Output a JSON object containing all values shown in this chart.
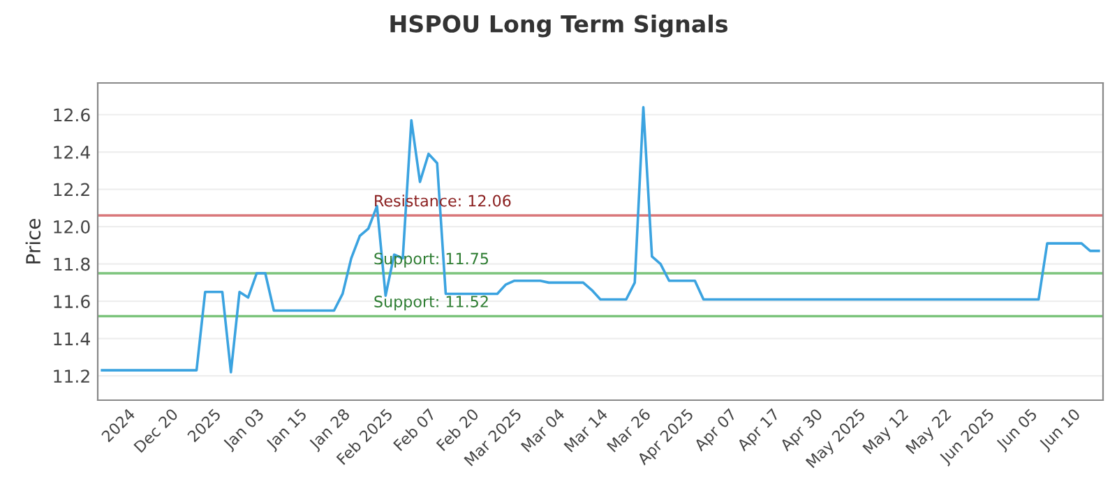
{
  "chart_data": {
    "type": "line",
    "title": "HSPOU Long Term Signals",
    "ylabel": "Price",
    "categories": [
      null,
      null,
      null,
      "2024",
      null,
      null,
      null,
      null,
      "Dec 20",
      null,
      null,
      null,
      null,
      "2025",
      null,
      null,
      null,
      null,
      "Jan 03",
      null,
      null,
      null,
      null,
      "Jan 15",
      null,
      null,
      null,
      null,
      "Jan 28",
      null,
      null,
      null,
      null,
      "Feb 2025",
      null,
      null,
      null,
      null,
      "Feb 07",
      null,
      null,
      null,
      null,
      "Feb 20",
      null,
      null,
      null,
      null,
      "Mar 2025",
      null,
      null,
      null,
      null,
      "Mar 04",
      null,
      null,
      null,
      null,
      "Mar 14",
      null,
      null,
      null,
      null,
      "Mar 26",
      null,
      null,
      null,
      null,
      "Apr 2025",
      null,
      null,
      null,
      null,
      "Apr 07",
      null,
      null,
      null,
      null,
      "Apr 17",
      null,
      null,
      null,
      null,
      "Apr 30",
      null,
      null,
      null,
      null,
      "May 2025",
      null,
      null,
      null,
      null,
      "May 12",
      null,
      null,
      null,
      null,
      "May 22",
      null,
      null,
      null,
      null,
      "Jun 2025",
      null,
      null,
      null,
      null,
      "Jun 05",
      null,
      null,
      null,
      null,
      "Jun 10",
      null,
      null,
      null
    ],
    "series": [
      {
        "color": "#3ba3e0",
        "values": [
          11.23,
          11.23,
          11.23,
          11.23,
          11.23,
          11.23,
          11.23,
          11.23,
          11.23,
          11.23,
          11.23,
          11.23,
          11.65,
          11.65,
          11.65,
          11.22,
          11.65,
          11.62,
          11.75,
          11.75,
          11.55,
          11.55,
          11.55,
          11.55,
          11.55,
          11.55,
          11.55,
          11.55,
          11.64,
          11.83,
          11.95,
          11.99,
          12.11,
          11.63,
          11.85,
          11.83,
          12.57,
          12.24,
          12.39,
          12.34,
          11.64,
          11.64,
          11.64,
          11.64,
          11.64,
          11.64,
          11.64,
          11.69,
          11.71,
          11.71,
          11.71,
          11.71,
          11.7,
          11.7,
          11.7,
          11.7,
          11.7,
          11.66,
          11.61,
          11.61,
          11.61,
          11.61,
          11.7,
          12.64,
          11.84,
          11.8,
          11.71,
          11.71,
          11.71,
          11.71,
          11.61,
          11.61,
          11.61,
          11.61,
          11.61,
          11.61,
          11.61,
          11.61,
          11.61,
          11.61,
          11.61,
          11.61,
          11.61,
          11.61,
          11.61,
          11.61,
          11.61,
          11.61,
          11.61,
          11.61,
          11.61,
          11.61,
          11.61,
          11.61,
          11.61,
          11.61,
          11.61,
          11.61,
          11.61,
          11.61,
          11.61,
          11.61,
          11.61,
          11.61,
          11.61,
          11.61,
          11.61,
          11.61,
          11.61,
          11.61,
          11.91,
          11.91,
          11.91,
          11.91,
          11.91,
          11.87,
          11.87
        ]
      }
    ],
    "ylim": [
      11.07,
      12.77
    ],
    "yticks": [
      {
        "value": 11.2,
        "label": "11.2"
      },
      {
        "value": 11.4,
        "label": "11.4"
      },
      {
        "value": 11.6,
        "label": "11.6"
      },
      {
        "value": 11.8,
        "label": "11.8"
      },
      {
        "value": 12.0,
        "label": "12.0"
      },
      {
        "value": 12.2,
        "label": "12.2"
      },
      {
        "value": 12.4,
        "label": "12.4"
      },
      {
        "value": 12.6,
        "label": "12.6"
      }
    ],
    "grid": "y",
    "marker": "none",
    "line_style": "solid",
    "ref_lines": [
      {
        "axis": "y",
        "value": 12.06,
        "label": "Resistance: 12.06",
        "color": "#d9777a"
      },
      {
        "axis": "y",
        "value": 11.75,
        "label": "Support: 11.75",
        "color": "#7cc47c"
      },
      {
        "axis": "y",
        "value": 11.52,
        "label": "Support: 11.52",
        "color": "#7cc47c"
      }
    ]
  }
}
